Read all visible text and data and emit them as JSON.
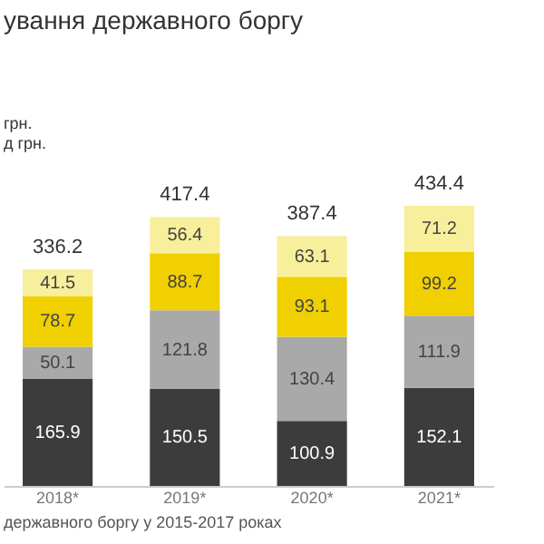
{
  "chart_data": {
    "type": "bar",
    "stacked": true,
    "title": "ування державного боргу",
    "categories": [
      "2018*",
      "2019*",
      "2020*",
      "2021*"
    ],
    "series": [
      {
        "color": "#3c3c3c",
        "values": [
          165.9,
          150.5,
          100.9,
          152.1
        ]
      },
      {
        "color": "#a9a9a9",
        "values": [
          50.1,
          121.8,
          130.4,
          111.9
        ]
      },
      {
        "color": "#f0d000",
        "values": [
          78.7,
          88.7,
          93.1,
          99.2
        ]
      },
      {
        "color": "#f8ef9c",
        "values": [
          41.5,
          56.4,
          63.1,
          71.2
        ]
      }
    ],
    "data_labels": true,
    "totals": [
      "336.2",
      "417.4",
      "387.4",
      "434.4"
    ],
    "grid": false,
    "annotations": [
      "грн.",
      "д грн.",
      "державного боргу у 2015-2017 роках"
    ]
  }
}
